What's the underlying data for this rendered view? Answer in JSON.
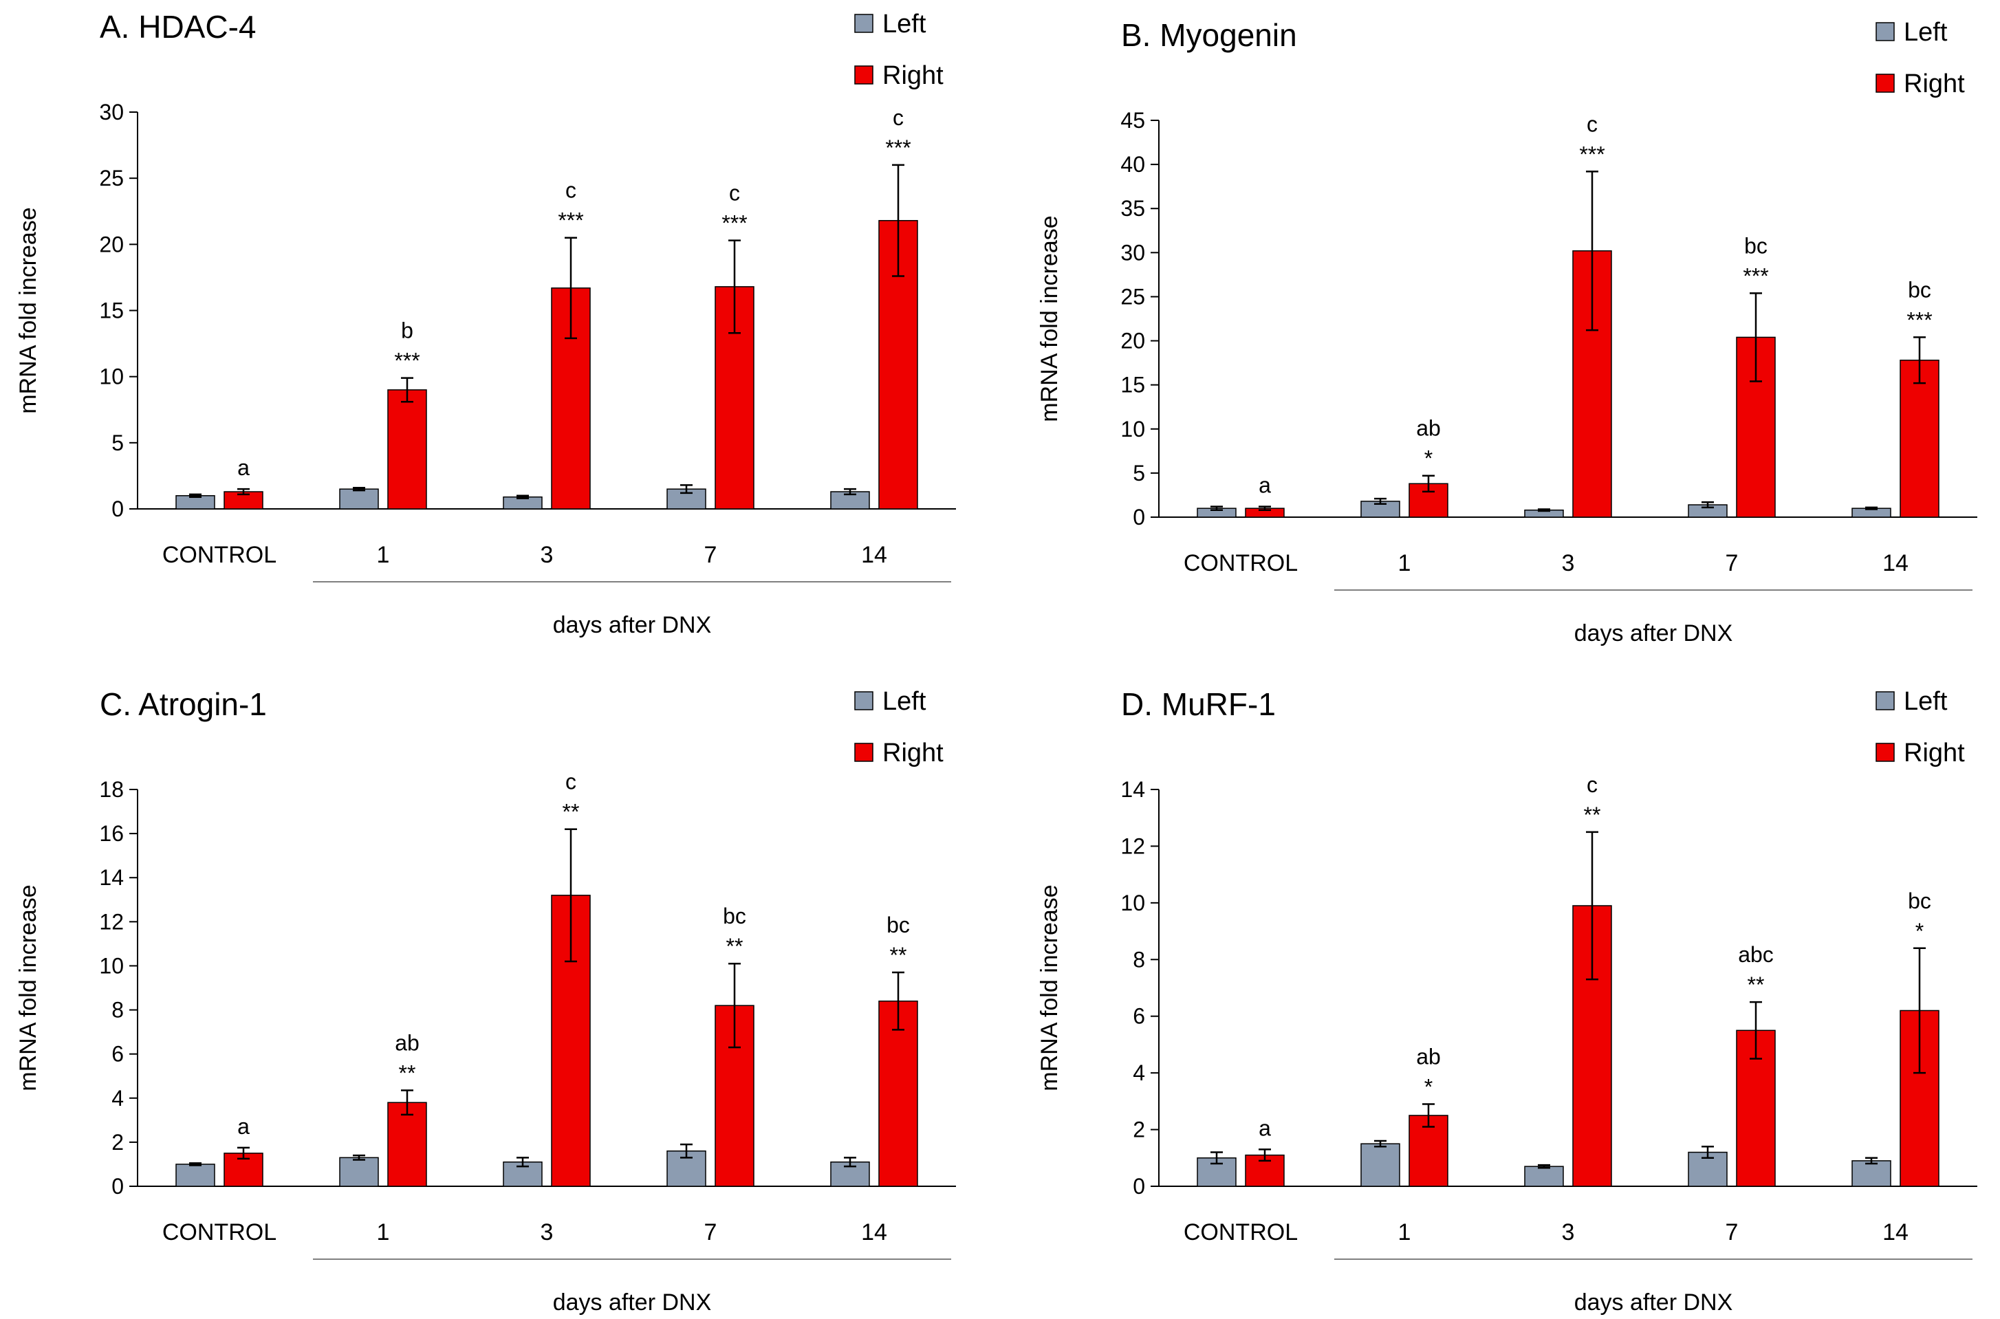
{
  "legend": {
    "left": "Left",
    "right": "Right"
  },
  "colors": {
    "left": "#8c9cb1",
    "right": "#ee0000",
    "axis": "#000000",
    "bracket": "#808080"
  },
  "chart_data": [
    {
      "type": "bar",
      "title": "A. HDAC-4",
      "ylabel": "mRNA fold increase",
      "xlabel": "days after DNX",
      "ylim": [
        0,
        30
      ],
      "yticks": [
        0,
        5,
        10,
        15,
        20,
        25,
        30
      ],
      "categories": [
        "CONTROL",
        "1",
        "3",
        "7",
        "14"
      ],
      "series": [
        {
          "name": "Left",
          "values": [
            1.0,
            1.5,
            0.9,
            1.5,
            1.3
          ],
          "errors": [
            0.1,
            0.1,
            0.1,
            0.3,
            0.2
          ]
        },
        {
          "name": "Right",
          "values": [
            1.3,
            9.0,
            16.7,
            16.8,
            21.8
          ],
          "errors": [
            0.2,
            0.9,
            3.8,
            3.5,
            4.2
          ]
        }
      ],
      "significance": [
        "",
        "***",
        "***",
        "***",
        "***"
      ],
      "letters": [
        "a",
        "b",
        "c",
        "c",
        "c"
      ]
    },
    {
      "type": "bar",
      "title": "B. Myogenin",
      "ylabel": "mRNA fold increase",
      "xlabel": "days after DNX",
      "ylim": [
        0,
        45
      ],
      "yticks": [
        0,
        5,
        10,
        15,
        20,
        25,
        30,
        35,
        40,
        45
      ],
      "categories": [
        "CONTROL",
        "1",
        "3",
        "7",
        "14"
      ],
      "series": [
        {
          "name": "Left",
          "values": [
            1.0,
            1.8,
            0.8,
            1.4,
            1.0
          ],
          "errors": [
            0.2,
            0.3,
            0.1,
            0.3,
            0.1
          ]
        },
        {
          "name": "Right",
          "values": [
            1.0,
            3.8,
            30.2,
            20.4,
            17.8
          ],
          "errors": [
            0.2,
            0.9,
            9.0,
            5.0,
            2.6
          ]
        }
      ],
      "significance": [
        "",
        "*",
        "***",
        "***",
        "***"
      ],
      "letters": [
        "a",
        "ab",
        "c",
        "bc",
        "bc"
      ]
    },
    {
      "type": "bar",
      "title": "C. Atrogin-1",
      "ylabel": "mRNA fold increase",
      "xlabel": "days after DNX",
      "ylim": [
        0,
        18
      ],
      "yticks": [
        0,
        2,
        4,
        6,
        8,
        10,
        12,
        14,
        16,
        18
      ],
      "categories": [
        "CONTROL",
        "1",
        "3",
        "7",
        "14"
      ],
      "series": [
        {
          "name": "Left",
          "values": [
            1.0,
            1.3,
            1.1,
            1.6,
            1.1
          ],
          "errors": [
            0.05,
            0.1,
            0.2,
            0.3,
            0.2
          ]
        },
        {
          "name": "Right",
          "values": [
            1.5,
            3.8,
            13.2,
            8.2,
            8.4
          ],
          "errors": [
            0.25,
            0.55,
            3.0,
            1.9,
            1.3
          ]
        }
      ],
      "significance": [
        "",
        "**",
        "**",
        "**",
        "**"
      ],
      "letters": [
        "a",
        "ab",
        "c",
        "bc",
        "bc"
      ]
    },
    {
      "type": "bar",
      "title": "D. MuRF-1",
      "ylabel": "mRNA fold increase",
      "xlabel": "days after DNX",
      "ylim": [
        0,
        14
      ],
      "yticks": [
        0,
        2,
        4,
        6,
        8,
        10,
        12,
        14
      ],
      "categories": [
        "CONTROL",
        "1",
        "3",
        "7",
        "14"
      ],
      "series": [
        {
          "name": "Left",
          "values": [
            1.0,
            1.5,
            0.7,
            1.2,
            0.9
          ],
          "errors": [
            0.2,
            0.1,
            0.05,
            0.2,
            0.1
          ]
        },
        {
          "name": "Right",
          "values": [
            1.1,
            2.5,
            9.9,
            5.5,
            6.2
          ],
          "errors": [
            0.2,
            0.4,
            2.6,
            1.0,
            2.2
          ]
        }
      ],
      "significance": [
        "",
        "*",
        "**",
        "**",
        "*"
      ],
      "letters": [
        "a",
        "ab",
        "c",
        "abc",
        "bc"
      ]
    }
  ]
}
